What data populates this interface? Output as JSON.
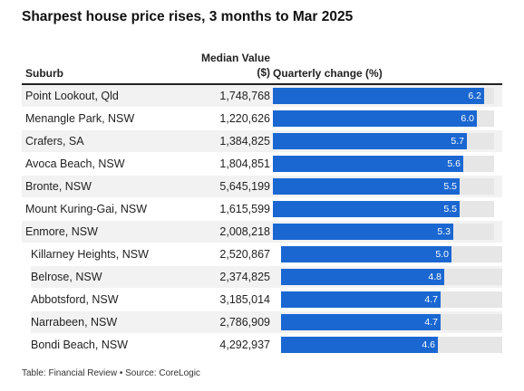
{
  "header": {
    "title": "Sharpest house price rises, 3 months to Mar 2025",
    "col_suburb": "Suburb",
    "col_median_line1": "Median Value",
    "col_median_line2": "($)",
    "col_change": "Quarterly change (%)"
  },
  "chart_data": {
    "type": "table",
    "title": "Sharpest house price rises, 3 months to Mar 2025",
    "columns": [
      "Suburb",
      "Median Value ($)",
      "Quarterly change (%)"
    ],
    "bar_max": 6.5,
    "rows": [
      {
        "suburb": "Point Lookout, Qld",
        "median": "1,748,768",
        "change": 6.2
      },
      {
        "suburb": "Menangle Park, NSW",
        "median": "1,220,626",
        "change": 6.0
      },
      {
        "suburb": "Crafers, SA",
        "median": "1,384,825",
        "change": 5.7
      },
      {
        "suburb": "Avoca Beach, NSW",
        "median": "1,804,851",
        "change": 5.6
      },
      {
        "suburb": "Bronte, NSW",
        "median": "5,645,199",
        "change": 5.5
      },
      {
        "suburb": "Mount Kuring-Gai, NSW",
        "median": "1,615,599",
        "change": 5.5
      },
      {
        "suburb": "Enmore, NSW",
        "median": "2,008,218",
        "change": 5.3
      },
      {
        "suburb": "Killarney Heights, NSW",
        "median": "2,520,867",
        "change": 5.0
      },
      {
        "suburb": "Belrose, NSW",
        "median": "2,374,825",
        "change": 4.8
      },
      {
        "suburb": "Abbotsford, NSW",
        "median": "3,185,014",
        "change": 4.7
      },
      {
        "suburb": "Narrabeen, NSW",
        "median": "2,786,909",
        "change": 4.7
      },
      {
        "suburb": "Bondi Beach, NSW",
        "median": "4,292,937",
        "change": 4.6
      }
    ]
  },
  "colors": {
    "bar": "#1a67d2",
    "track": "#e6e6e6",
    "row_shade": "#f2f2f2"
  },
  "footer": {
    "source": "Table: Financial Review • Source: CoreLogic"
  }
}
